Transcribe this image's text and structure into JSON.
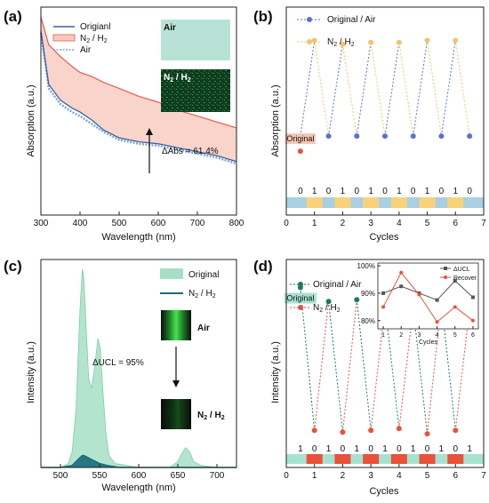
{
  "colors": {
    "original": "#3b5ea8",
    "n2h2": "#e85a4a",
    "n2h2_fill": "#f8c9be",
    "air": "#7aa6c8",
    "panel_b_blue": "#5b6fd6",
    "panel_b_orange": "#f5c26b",
    "panel_b_blue_band": "#a9cfe3",
    "panel_b_yellow_block": "#f8d27a",
    "panel_c_green_fill": "#a6dfc5",
    "panel_c_dark": "#1a6a7a",
    "panel_d_green": "#1b7a5c",
    "panel_d_red": "#e9513a",
    "panel_d_band": "#a7e2d0",
    "inset_ducl": "#555555",
    "inset_recover": "#e9513a",
    "inset_air_img": "#b9e2d6",
    "inset_n2h2_img": "#0e3b1e",
    "insets_c_img": "#0b0b0b",
    "insets_c_glow": "#2fbf3a"
  },
  "chart_data": [
    {
      "panel": "(a)",
      "type": "line",
      "xlabel": "Wavelength (nm)",
      "ylabel": "Absorption (a.u.)",
      "xlim": [
        300,
        800
      ],
      "xticks": [
        "300",
        "400",
        "500",
        "600",
        "700",
        "800"
      ],
      "series": [
        {
          "name": "Origianl",
          "x": [
            300,
            320,
            350,
            380,
            400,
            430,
            460,
            500,
            550,
            600,
            650,
            700,
            750,
            800
          ],
          "y": [
            0.93,
            0.66,
            0.58,
            0.54,
            0.52,
            0.48,
            0.43,
            0.39,
            0.37,
            0.36,
            0.34,
            0.32,
            0.3,
            0.27
          ]
        },
        {
          "name": "N2 / H2",
          "x": [
            300,
            320,
            350,
            380,
            400,
            430,
            460,
            500,
            550,
            600,
            650,
            700,
            750,
            800
          ],
          "y": [
            1.0,
            0.86,
            0.8,
            0.75,
            0.72,
            0.7,
            0.67,
            0.64,
            0.6,
            0.57,
            0.53,
            0.5,
            0.47,
            0.44
          ]
        },
        {
          "name": "Air",
          "x": [
            300,
            320,
            350,
            380,
            400,
            430,
            460,
            500,
            550,
            600,
            650,
            700,
            750,
            800
          ],
          "y": [
            0.92,
            0.64,
            0.56,
            0.52,
            0.5,
            0.46,
            0.42,
            0.38,
            0.36,
            0.35,
            0.33,
            0.31,
            0.29,
            0.26
          ]
        }
      ],
      "annotation": "ΔAbs = 61.4%",
      "inset_labels": [
        "Air",
        "N2 / H2"
      ]
    },
    {
      "panel": "(b)",
      "type": "line",
      "xlabel": "Cycles",
      "ylabel": "Absorption (a.u.)",
      "xlim": [
        0,
        7
      ],
      "xticks": [
        "0",
        "1",
        "2",
        "3",
        "4",
        "5",
        "6",
        "7"
      ],
      "series": [
        {
          "name": "Original / Air",
          "x": [
            0.5,
            1.5,
            2.5,
            3.5,
            4.5,
            5.5,
            6.5
          ],
          "y": [
            0.38,
            0.38,
            0.38,
            0.38,
            0.38,
            0.38,
            0.38
          ]
        },
        {
          "name": "N2 / H2",
          "x": [
            1,
            2,
            3,
            4,
            5,
            6
          ],
          "y": [
            0.84,
            0.82,
            0.83,
            0.83,
            0.84,
            0.84
          ]
        }
      ],
      "original_point": {
        "x": 0.5,
        "y": 0.35
      },
      "original_label": "Original",
      "state_sequence": [
        "0",
        "1",
        "0",
        "1",
        "0",
        "1",
        "0",
        "1",
        "0",
        "1",
        "0",
        "1",
        "0"
      ]
    },
    {
      "panel": "(c)",
      "type": "area",
      "xlabel": "Wavelength (nm)",
      "ylabel": "Intensity (a.u.)",
      "xlim": [
        475,
        725
      ],
      "xticks": [
        "500",
        "550",
        "600",
        "650",
        "700"
      ],
      "series": [
        {
          "name": "Original",
          "x": [
            475,
            500,
            510,
            515,
            520,
            525,
            528,
            530,
            533,
            536,
            540,
            545,
            548,
            551,
            554,
            558,
            562,
            570,
            600,
            640,
            650,
            655,
            660,
            665,
            670,
            680,
            700,
            725
          ],
          "y": [
            0,
            0,
            0.02,
            0.08,
            0.3,
            0.8,
            1.0,
            0.95,
            0.7,
            0.45,
            0.4,
            0.55,
            0.65,
            0.6,
            0.4,
            0.18,
            0.06,
            0.02,
            0,
            0,
            0.03,
            0.07,
            0.1,
            0.08,
            0.03,
            0.01,
            0,
            0
          ]
        },
        {
          "name": "N2 / H2",
          "x": [
            475,
            500,
            515,
            520,
            525,
            528,
            530,
            535,
            540,
            550,
            560,
            575,
            650,
            725
          ],
          "y": [
            0,
            0,
            0.01,
            0.03,
            0.05,
            0.06,
            0.06,
            0.05,
            0.04,
            0.02,
            0.01,
            0,
            0,
            0
          ]
        }
      ],
      "annotation": "ΔUCL = 95%",
      "inset_labels": [
        "Air",
        "N2 / H2"
      ]
    },
    {
      "panel": "(d)",
      "type": "line",
      "xlabel": "Cycles",
      "ylabel": "Intensity (a.u.)",
      "xlim": [
        0,
        7
      ],
      "xticks": [
        "0",
        "1",
        "2",
        "3",
        "4",
        "5",
        "6",
        "7"
      ],
      "series": [
        {
          "name": "Original / Air",
          "x": [
            0.5,
            1.5,
            2.5,
            3.5,
            4.5,
            5.5,
            6.5
          ],
          "y": [
            0.88,
            0.8,
            0.81,
            0.78,
            0.76,
            0.8,
            0.76
          ]
        },
        {
          "name": "N2 / H2",
          "x": [
            1,
            2,
            3,
            4,
            5,
            6
          ],
          "y": [
            0.06,
            0.05,
            0.06,
            0.07,
            0.04,
            0.06
          ]
        }
      ],
      "original_label": "Original",
      "state_sequence": [
        "1",
        "0",
        "1",
        "0",
        "1",
        "0",
        "1",
        "0",
        "1",
        "0",
        "1",
        "0",
        "1"
      ],
      "inset": {
        "xlabel": "Cycles",
        "xticks": [
          "1",
          "2",
          "3",
          "4",
          "5",
          "6"
        ],
        "yticks": [
          "80%",
          "90%",
          "100%"
        ],
        "ylim": [
          77,
          101
        ],
        "series": [
          {
            "name": "ΔUCL",
            "x": [
              1,
              2,
              3,
              4,
              5,
              6
            ],
            "y": [
              90,
              92.5,
              90,
              87.5,
              94.5,
              88.5
            ]
          },
          {
            "name": "Recover",
            "x": [
              1,
              2,
              3,
              4,
              5,
              6
            ],
            "y": [
              85,
              97.5,
              89.5,
              79.5,
              85,
              80
            ]
          }
        ]
      }
    }
  ]
}
